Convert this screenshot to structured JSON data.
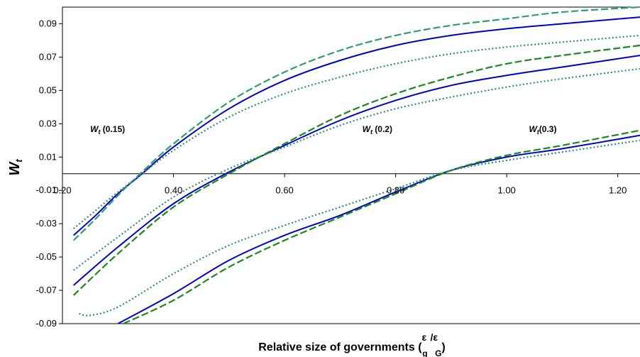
{
  "chart_data": {
    "type": "line",
    "xlabel": "Relative size of governments (",
    "xlabel_sym1": "ε",
    "xlabel_sub1": "g",
    "xlabel_slash": "/",
    "xlabel_sym2": "ε",
    "xlabel_sub2": "G",
    "xlabel_close": ")",
    "ylabel": "W",
    "ylabel_sub": "t",
    "xlim": [
      0.2,
      1.24
    ],
    "ylim": [
      -0.09,
      0.1
    ],
    "x_ticks": [
      "0.20",
      "0.40",
      "0.60",
      "0.80",
      "1.00",
      "1.20"
    ],
    "x_tick_values": [
      0.2,
      0.4,
      0.6,
      0.8,
      1.0,
      1.2
    ],
    "y_ticks": [
      "0.09",
      "0.07",
      "0.05",
      "0.03",
      "0.01",
      "-0.01",
      "-0.03",
      "-0.05",
      "-0.07",
      "-0.09"
    ],
    "y_tick_values": [
      0.09,
      0.07,
      0.05,
      0.03,
      0.01,
      -0.01,
      -0.03,
      -0.05,
      -0.07,
      -0.09
    ],
    "grid": false,
    "legend": "none",
    "annotations": [
      {
        "main": "W",
        "sub": "t",
        "rest": " (0.15)",
        "x": 0.25,
        "y": 0.025
      },
      {
        "main": "W",
        "sub": "t",
        "rest": " (0.2)",
        "x": 0.74,
        "y": 0.025
      },
      {
        "main": "W",
        "sub": "t",
        "rest": "(0.3)",
        "x": 1.04,
        "y": 0.025
      }
    ],
    "series": [
      {
        "group": "0.15",
        "style": "solid",
        "color": "#0000cc",
        "x": [
          0.22,
          0.26,
          0.3,
          0.34,
          0.4,
          0.5,
          0.6,
          0.7,
          0.8,
          0.9,
          1.0,
          1.1,
          1.24
        ],
        "y": [
          -0.037,
          -0.025,
          -0.012,
          -0.001,
          0.016,
          0.039,
          0.056,
          0.068,
          0.077,
          0.083,
          0.087,
          0.09,
          0.094
        ]
      },
      {
        "group": "0.15",
        "style": "dotted",
        "color": "#2e8b8b",
        "x": [
          0.22,
          0.26,
          0.3,
          0.34,
          0.4,
          0.5,
          0.6,
          0.7,
          0.8,
          0.9,
          1.0,
          1.1,
          1.24
        ],
        "y": [
          -0.033,
          -0.022,
          -0.011,
          -0.001,
          0.014,
          0.034,
          0.048,
          0.058,
          0.066,
          0.072,
          0.076,
          0.079,
          0.083
        ]
      },
      {
        "group": "0.15",
        "style": "dashed",
        "color": "#2e9e70",
        "x": [
          0.22,
          0.26,
          0.3,
          0.34,
          0.4,
          0.5,
          0.6,
          0.7,
          0.8,
          0.9,
          1.0,
          1.1,
          1.24
        ],
        "y": [
          -0.04,
          -0.027,
          -0.013,
          0.0,
          0.018,
          0.043,
          0.061,
          0.074,
          0.083,
          0.089,
          0.093,
          0.097,
          0.1
        ]
      },
      {
        "group": "0.2",
        "style": "solid",
        "color": "#0000cc",
        "x": [
          0.22,
          0.3,
          0.4,
          0.5,
          0.6,
          0.7,
          0.8,
          0.9,
          1.0,
          1.1,
          1.24
        ],
        "y": [
          -0.067,
          -0.044,
          -0.018,
          0.001,
          0.017,
          0.032,
          0.044,
          0.053,
          0.059,
          0.064,
          0.071
        ]
      },
      {
        "group": "0.2",
        "style": "dotted",
        "color": "#2e8b8b",
        "x": [
          0.22,
          0.3,
          0.4,
          0.5,
          0.6,
          0.7,
          0.8,
          0.9,
          1.0,
          1.1,
          1.24
        ],
        "y": [
          -0.058,
          -0.038,
          -0.014,
          0.003,
          0.016,
          0.029,
          0.039,
          0.046,
          0.052,
          0.057,
          0.063
        ]
      },
      {
        "group": "0.2",
        "style": "dashed",
        "color": "#1a8a1a",
        "x": [
          0.22,
          0.3,
          0.4,
          0.5,
          0.6,
          0.7,
          0.8,
          0.9,
          1.0,
          1.1,
          1.24
        ],
        "y": [
          -0.073,
          -0.048,
          -0.02,
          0.0,
          0.018,
          0.035,
          0.048,
          0.058,
          0.066,
          0.071,
          0.077
        ]
      },
      {
        "group": "0.3",
        "style": "solid",
        "color": "#0000cc",
        "x": [
          0.3,
          0.4,
          0.5,
          0.6,
          0.7,
          0.8,
          0.9,
          1.0,
          1.1,
          1.24
        ],
        "y": [
          -0.09,
          -0.072,
          -0.052,
          -0.037,
          -0.025,
          -0.011,
          0.002,
          0.01,
          0.015,
          0.023
        ]
      },
      {
        "group": "0.3",
        "style": "dotted",
        "color": "#2e8b8b",
        "x": [
          0.23,
          0.25,
          0.3,
          0.4,
          0.5,
          0.6,
          0.7,
          0.8,
          0.9,
          1.0,
          1.1,
          1.24
        ],
        "y": [
          -0.084,
          -0.085,
          -0.08,
          -0.06,
          -0.043,
          -0.031,
          -0.02,
          -0.009,
          0.002,
          0.008,
          0.013,
          0.02
        ]
      },
      {
        "group": "0.3",
        "style": "dashed",
        "color": "#1a8a1a",
        "x": [
          0.31,
          0.4,
          0.5,
          0.6,
          0.7,
          0.8,
          0.9,
          1.0,
          1.1,
          1.24
        ],
        "y": [
          -0.09,
          -0.076,
          -0.056,
          -0.04,
          -0.026,
          -0.012,
          0.002,
          0.011,
          0.017,
          0.026
        ]
      }
    ]
  }
}
